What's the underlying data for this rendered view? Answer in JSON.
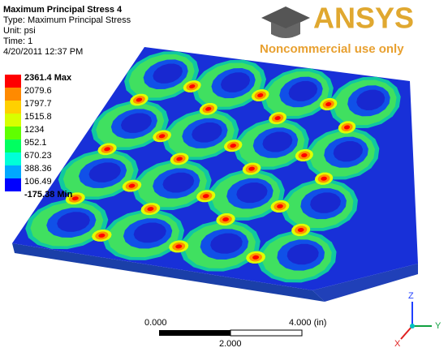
{
  "header": {
    "title": "Maximum Principal Stress 4",
    "type": "Type: Maximum Principal Stress",
    "unit": "Unit: psi",
    "time": "Time: 1",
    "date": "4/20/2011 12:37 PM"
  },
  "legend": {
    "entries": [
      "2361.4 Max",
      "2079.6",
      "1797.7",
      "1515.8",
      "1234",
      "952.1",
      "670.23",
      "388.36",
      "106.49",
      "-175.38 Min"
    ]
  },
  "logo": {
    "brand": "ANSYS",
    "note": "Noncommercial use only"
  },
  "scale_bar": {
    "start": "0.000",
    "end": "4.000 (in)",
    "middle": "2.000"
  },
  "triad": {
    "z": "Z",
    "y": "Y",
    "x": "X"
  }
}
